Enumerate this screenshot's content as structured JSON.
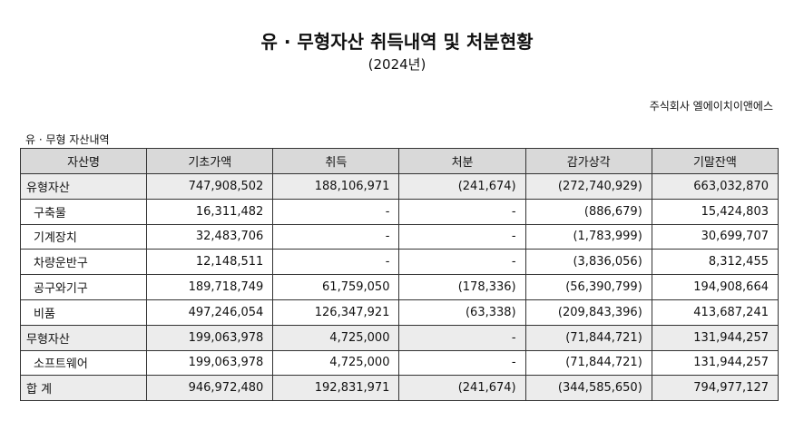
{
  "header": {
    "title": "유 · 무형자산 취득내역 및 처분현황",
    "subtitle": "(2024년)",
    "company": "주식회사 엘에이치이앤에스"
  },
  "table": {
    "caption": "유 · 무형 자산내역",
    "columns": [
      "자산명",
      "기초가액",
      "취득",
      "처분",
      "감가상각",
      "기말잔액"
    ],
    "rows": [
      [
        "유형자산",
        "747,908,502",
        "188,106,971",
        "(241,674)",
        "(272,740,929)",
        "663,032,870"
      ],
      [
        "구축물",
        "16,311,482",
        "-",
        "-",
        "(886,679)",
        "15,424,803"
      ],
      [
        "기계장치",
        "32,483,706",
        "-",
        "-",
        "(1,783,999)",
        "30,699,707"
      ],
      [
        "차량운반구",
        "12,148,511",
        "-",
        "-",
        "(3,836,056)",
        "8,312,455"
      ],
      [
        "공구와기구",
        "189,718,749",
        "61,759,050",
        "(178,336)",
        "(56,390,799)",
        "194,908,664"
      ],
      [
        "비품",
        "497,246,054",
        "126,347,921",
        "(63,338)",
        "(209,843,396)",
        "413,687,241"
      ],
      [
        "무형자산",
        "199,063,978",
        "4,725,000",
        "-",
        "(71,844,721)",
        "131,944,257"
      ],
      [
        "소프트웨어",
        "199,063,978",
        "4,725,000",
        "-",
        "(71,844,721)",
        "131,944,257"
      ],
      [
        "합 계",
        "946,972,480",
        "192,831,971",
        "(241,674)",
        "(344,585,650)",
        "794,977,127"
      ]
    ]
  }
}
